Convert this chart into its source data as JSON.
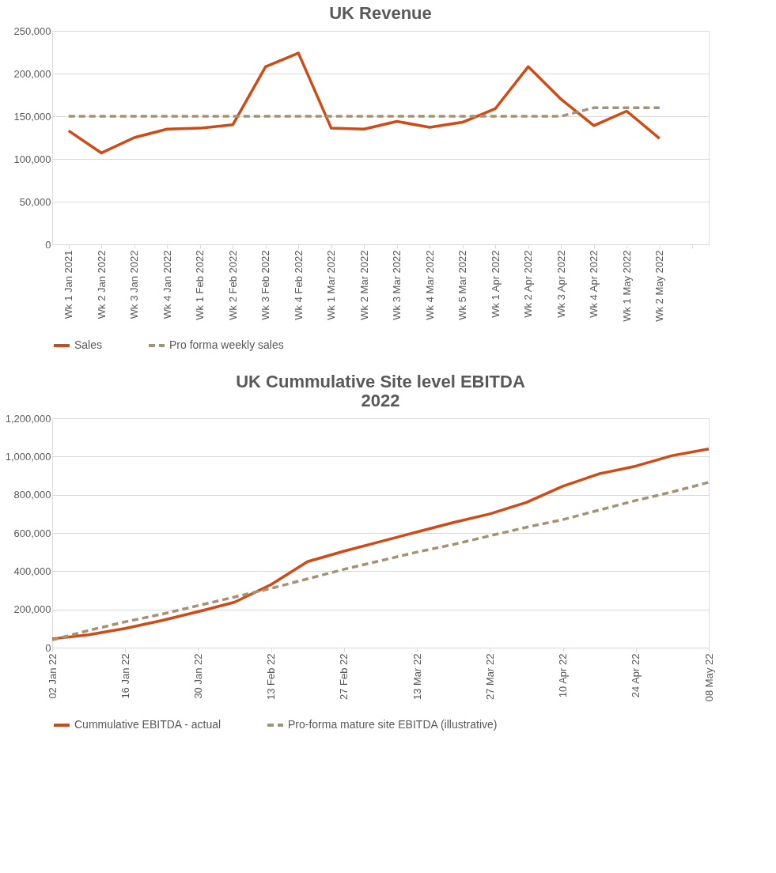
{
  "chart_data": [
    {
      "type": "line",
      "title": "UK Revenue",
      "categories": [
        "Wk 1 Jan 2021",
        "Wk 2 Jan 2022",
        "Wk 3 Jan 2022",
        "Wk 4 Jan 2022",
        "Wk 1 Feb 2022",
        "Wk 2 Feb 2022",
        "Wk 3 Feb 2022",
        "Wk 4 Feb 2022",
        "Wk 1 Mar 2022",
        "Wk 2 Mar 2022",
        "Wk 3 Mar 2022",
        "Wk 4 Mar 2022",
        "Wk 5 Mar 2022",
        "Wk 1 Apr 2022",
        "Wk 2 Apr 2022",
        "Wk 3 Apr 2022",
        "Wk 4 Apr 2022",
        "Wk 1 May 2022",
        "Wk 2 May 2022",
        null
      ],
      "series": [
        {
          "name": "Sales",
          "color": "#d04a15",
          "line_style": "solid",
          "values": [
            133000,
            107000,
            125000,
            135000,
            136000,
            140000,
            208000,
            224000,
            136000,
            135000,
            144000,
            137000,
            143000,
            159000,
            208000,
            170000,
            139000,
            156000,
            124000,
            null
          ]
        },
        {
          "name": "Pro forma weekly sales",
          "color": "#a69272",
          "line_style": "dashed",
          "values": [
            150000,
            150000,
            150000,
            150000,
            150000,
            150000,
            150000,
            150000,
            150000,
            150000,
            150000,
            150000,
            150000,
            150000,
            150000,
            150000,
            160000,
            160000,
            160000,
            null
          ]
        }
      ],
      "ylim": [
        0,
        250000
      ],
      "yticks": [
        0,
        {
          "value": 50000,
          "label": "50,000"
        },
        {
          "value": 100000,
          "label": "100,000"
        },
        {
          "value": 150000,
          "label": "150,000"
        },
        {
          "value": 200000,
          "label": "200,000"
        },
        {
          "value": 250000,
          "label": "250,000"
        }
      ],
      "grid": "y",
      "legend": "bottom",
      "marker": "none"
    },
    {
      "type": "line",
      "title": "UK Cummulative Site level EBITDA\n2022",
      "x": [
        "2022-01-02",
        "2022-01-09",
        "2022-01-16",
        "2022-01-23",
        "2022-01-30",
        "2022-02-06",
        "2022-02-13",
        "2022-02-20",
        "2022-02-27",
        "2022-03-06",
        "2022-03-13",
        "2022-03-20",
        "2022-03-27",
        "2022-04-03",
        "2022-04-10",
        "2022-04-17",
        "2022-04-24",
        "2022-05-01",
        "2022-05-08"
      ],
      "series": [
        {
          "name": "Cummulative EBITDA - actual",
          "color": "#d04a15",
          "line_style": "solid",
          "values": [
            46000,
            67000,
            100000,
            142000,
            188000,
            238000,
            330000,
            450000,
            505000,
            555000,
            605000,
            655000,
            700000,
            760000,
            845000,
            910000,
            950000,
            1005000,
            1040000
          ]
        },
        {
          "name": "Pro-forma mature site EBITDA (illustrative)",
          "color": "#a69272",
          "line_style": "dashed",
          "values": [
            40000,
            90000,
            135000,
            175000,
            220000,
            265000,
            310000,
            360000,
            410000,
            455000,
            500000,
            540000,
            585000,
            630000,
            670000,
            720000,
            770000,
            815000,
            865000
          ]
        }
      ],
      "xlim": [
        "2022-01-02",
        "2022-05-08"
      ],
      "xticks": [
        {
          "value": "2022-01-02",
          "label": "02 Jan 22"
        },
        {
          "value": "2022-01-16",
          "label": "16 Jan 22"
        },
        {
          "value": "2022-01-30",
          "label": "30 Jan 22"
        },
        {
          "value": "2022-02-13",
          "label": "13 Feb 22"
        },
        {
          "value": "2022-02-27",
          "label": "27 Feb 22"
        },
        {
          "value": "2022-03-13",
          "label": "13 Mar 22"
        },
        {
          "value": "2022-03-27",
          "label": "27 Mar 22"
        },
        {
          "value": "2022-04-10",
          "label": "10 Apr 22"
        },
        {
          "value": "2022-04-24",
          "label": "24 Apr 22"
        },
        {
          "value": "2022-05-08",
          "label": "08 May 22"
        }
      ],
      "ylim": [
        0,
        1200000
      ],
      "yticks": [
        0,
        {
          "value": 200000,
          "label": "200,000"
        },
        {
          "value": 400000,
          "label": "400,000"
        },
        {
          "value": 600000,
          "label": "600,000"
        },
        {
          "value": 800000,
          "label": "800,000"
        },
        {
          "value": 1000000,
          "label": "1,000,000"
        },
        {
          "value": 1200000,
          "label": "1,200,000"
        }
      ],
      "grid": "y",
      "legend": "bottom",
      "marker": "none"
    }
  ]
}
